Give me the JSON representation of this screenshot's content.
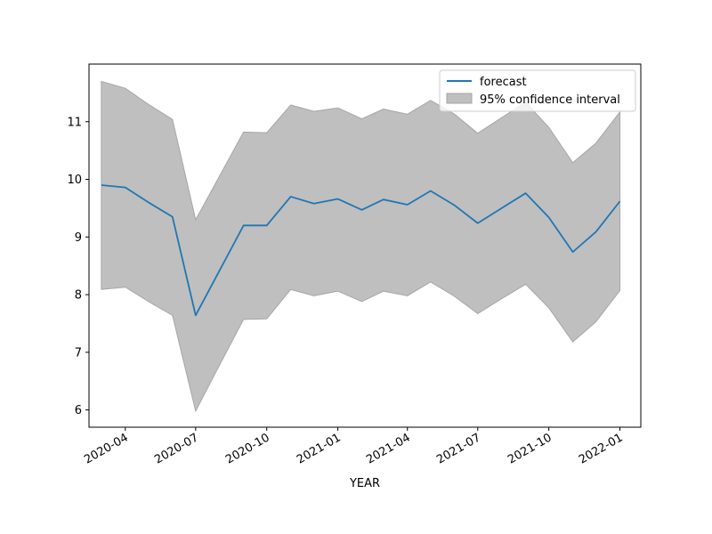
{
  "chart_data": {
    "type": "line",
    "title": "",
    "xlabel": "YEAR",
    "ylabel": "",
    "x_ticks": [
      "2020-04",
      "2020-07",
      "2020-10",
      "2021-01",
      "2021-04",
      "2021-07",
      "2021-10",
      "2022-01"
    ],
    "y_ticks": [
      "6",
      "7",
      "8",
      "9",
      "10",
      "11"
    ],
    "ylim": [
      5.7,
      12.0
    ],
    "xlim": [
      "2020-02-14",
      "2022-01-28"
    ],
    "legend_position": "top-right",
    "grid": false,
    "x": [
      "2020-03-01",
      "2020-04-01",
      "2020-05-01",
      "2020-06-01",
      "2020-07-01",
      "2020-08-01",
      "2020-09-01",
      "2020-10-01",
      "2020-11-01",
      "2020-12-01",
      "2021-01-01",
      "2021-02-01",
      "2021-03-01",
      "2021-04-01",
      "2021-05-01",
      "2021-06-01",
      "2021-07-01",
      "2021-08-01",
      "2021-09-01",
      "2021-10-01",
      "2021-11-01",
      "2021-12-01",
      "2022-01-01"
    ],
    "series": [
      {
        "name": "forecast",
        "color": "#1f77b4",
        "values": [
          9.9,
          9.86,
          9.6,
          9.35,
          7.64,
          8.42,
          9.2,
          9.2,
          9.7,
          9.58,
          9.66,
          9.47,
          9.65,
          9.56,
          9.8,
          9.55,
          9.24,
          9.5,
          9.76,
          9.34,
          8.74,
          9.09,
          9.62
        ]
      }
    ],
    "confidence_interval": {
      "name": "95% confidence interval",
      "color": "#bfbfbf",
      "edge_color": "#a6a6a6",
      "lower": [
        8.09,
        8.13,
        7.88,
        7.64,
        5.98,
        6.78,
        7.57,
        7.58,
        8.09,
        7.98,
        8.06,
        7.88,
        8.06,
        7.98,
        8.22,
        7.97,
        7.67,
        7.93,
        8.18,
        7.77,
        7.18,
        7.53,
        8.07
      ],
      "upper": [
        11.7,
        11.58,
        11.3,
        11.04,
        9.3,
        10.06,
        10.82,
        10.81,
        11.29,
        11.18,
        11.24,
        11.05,
        11.22,
        11.13,
        11.37,
        11.13,
        10.8,
        11.07,
        11.34,
        10.9,
        10.29,
        10.63,
        11.17
      ]
    }
  }
}
